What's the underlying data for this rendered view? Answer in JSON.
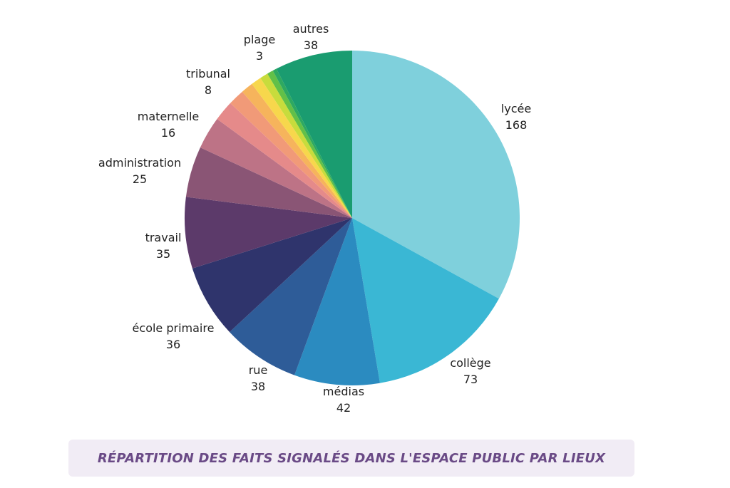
{
  "chart_data": {
    "type": "pie",
    "title": "RÉPARTITION DES FAITS SIGNALÉS DANS L'ESPACE PUBLIC PAR LIEUX",
    "slices": [
      {
        "label": "lycée",
        "value": 168,
        "color": "#7fd0dc"
      },
      {
        "label": "collège",
        "value": 73,
        "color": "#3ab7d4"
      },
      {
        "label": "médias",
        "value": 42,
        "color": "#2b8bc0"
      },
      {
        "label": "rue",
        "value": 38,
        "color": "#2e5c98"
      },
      {
        "label": "école primaire",
        "value": 36,
        "color": "#2f346c"
      },
      {
        "label": "travail",
        "value": 35,
        "color": "#5c3a6a"
      },
      {
        "label": "administration",
        "value": 25,
        "color": "#8a5575"
      },
      {
        "label": "maternelle",
        "value": 16,
        "color": "#bd7386"
      },
      {
        "label": "",
        "value": 10,
        "color": "#e58a8a"
      },
      {
        "label": "tribunal",
        "value": 8,
        "color": "#f19a78"
      },
      {
        "label": "",
        "value": 6,
        "color": "#f6b45c"
      },
      {
        "label": "",
        "value": 5,
        "color": "#f7d74c"
      },
      {
        "label": "",
        "value": 4,
        "color": "#c8dc3c"
      },
      {
        "label": "plage",
        "value": 3,
        "color": "#62c048"
      },
      {
        "label": "",
        "value": 2,
        "color": "#2ea960"
      },
      {
        "label": "autres",
        "value": 38,
        "color": "#1a9c70"
      }
    ]
  },
  "caption": {
    "text": "RÉPARTITION DES FAITS SIGNALÉS DANS L'ESPACE PUBLIC PAR LIEUX"
  }
}
